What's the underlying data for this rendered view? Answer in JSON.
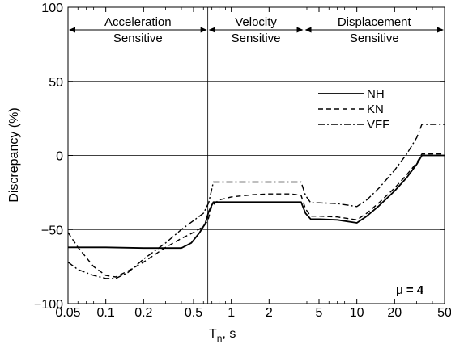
{
  "chart_data": {
    "type": "line",
    "xlabel": "Tₙ, s",
    "xlabel_main": "T",
    "xlabel_sub": "n",
    "xlabel_unit": ", s",
    "ylabel": "Discrepancy (%)",
    "x_scale": "log",
    "xlim": [
      0.05,
      50
    ],
    "ylim": [
      -100,
      100
    ],
    "x_ticks": [
      0.05,
      0.1,
      0.2,
      0.5,
      1,
      2,
      5,
      10,
      20,
      50
    ],
    "x_tick_labels": [
      "0.05",
      "0.1",
      "0.2",
      "0.5",
      "1",
      "2",
      "5",
      "10",
      "20",
      "50"
    ],
    "y_ticks": [
      -100,
      -50,
      0,
      50,
      100
    ],
    "y_tick_labels": [
      "−100",
      "−50",
      "0",
      "50",
      "100"
    ],
    "grid": "horizontal",
    "region_boundaries": [
      0.65,
      3.8
    ],
    "regions": [
      {
        "line1": "Acceleration",
        "line2": "Sensitive",
        "from": 0.05,
        "to": 0.65
      },
      {
        "line1": "Velocity",
        "line2": "Sensitive",
        "from": 0.65,
        "to": 3.8
      },
      {
        "line1": "Displacement",
        "line2": "Sensitive",
        "from": 3.8,
        "to": 50
      }
    ],
    "legend_position": "top-right",
    "annotation": {
      "symbol": "μ",
      "text": " = 4"
    },
    "series": [
      {
        "name": "NH",
        "style": "solid",
        "x": [
          0.05,
          0.1,
          0.2,
          0.4,
          0.48,
          0.56,
          0.62,
          0.66,
          0.72,
          1,
          2,
          3,
          3.6,
          3.9,
          4.3,
          5,
          7,
          10,
          12,
          15,
          20,
          25,
          30,
          33,
          40,
          50
        ],
        "y": [
          -62,
          -62,
          -62.5,
          -62.5,
          -59,
          -52,
          -46,
          -38,
          -31.5,
          -31.5,
          -31.5,
          -31.5,
          -31.5,
          -39,
          -43,
          -43,
          -43.5,
          -45.5,
          -41,
          -34,
          -24,
          -15,
          -6,
          0,
          0,
          0
        ]
      },
      {
        "name": "KN",
        "style": "dashed",
        "x": [
          0.05,
          0.06,
          0.08,
          0.1,
          0.12,
          0.15,
          0.2,
          0.3,
          0.4,
          0.5,
          0.6,
          0.65,
          0.7,
          0.8,
          1,
          1.5,
          2,
          3,
          3.6,
          3.9,
          4.3,
          5,
          7,
          10,
          12,
          15,
          20,
          25,
          30,
          33,
          40,
          50
        ],
        "y": [
          -52,
          -62,
          -75,
          -81,
          -82,
          -78,
          -72,
          -62,
          -56,
          -52,
          -48,
          -44,
          -34,
          -30,
          -28,
          -26.5,
          -26,
          -26,
          -27,
          -36,
          -41,
          -41,
          -41.5,
          -43.5,
          -39,
          -32,
          -22,
          -13,
          -5,
          1,
          1,
          1
        ]
      },
      {
        "name": "VFF",
        "style": "dashdot",
        "x": [
          0.05,
          0.06,
          0.08,
          0.1,
          0.12,
          0.15,
          0.2,
          0.3,
          0.4,
          0.5,
          0.6,
          0.66,
          0.72,
          1,
          2,
          3,
          3.6,
          3.9,
          4.3,
          5,
          7,
          10,
          12,
          15,
          20,
          25,
          30,
          33,
          40,
          50
        ],
        "y": [
          -72,
          -77,
          -81,
          -83,
          -83,
          -79,
          -70,
          -59,
          -50,
          -44,
          -39,
          -32,
          -18,
          -18,
          -18,
          -18,
          -18,
          -27,
          -32,
          -32,
          -32.5,
          -34.5,
          -30,
          -22,
          -10,
          1,
          12,
          21,
          21,
          21
        ]
      }
    ]
  }
}
